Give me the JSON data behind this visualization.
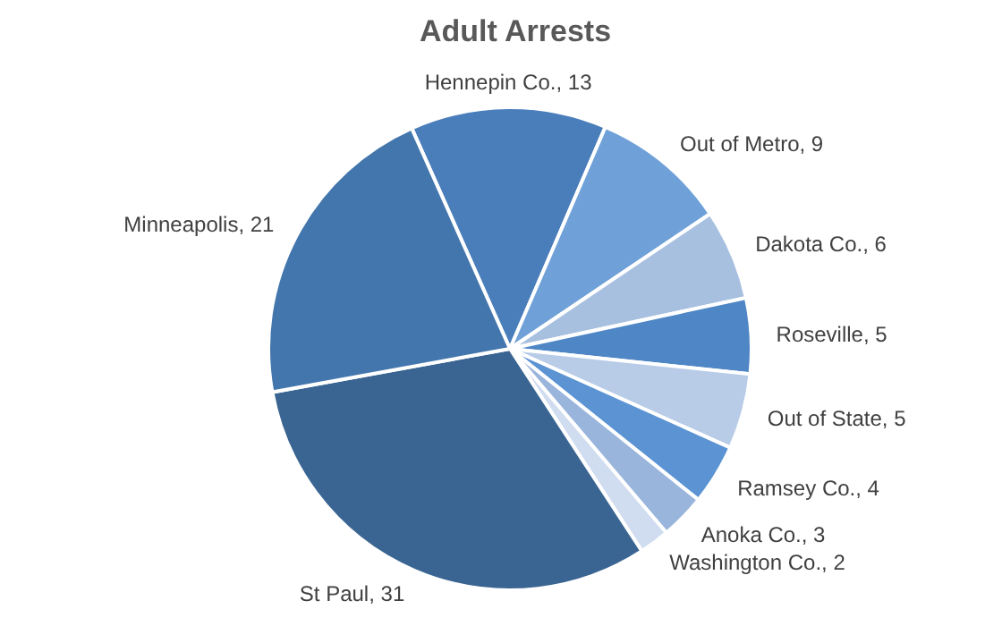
{
  "chart_data": {
    "type": "pie",
    "title": "Adult Arrests",
    "categories": [
      "Hennepin Co., 13",
      "Out of Metro, 9",
      "Dakota Co., 6",
      "Roseville, 5",
      "Out of State, 5",
      "Ramsey Co., 4",
      "Anoka Co., 3",
      "Washington Co., 2",
      "St Paul, 31",
      "Minneapolis, 21"
    ],
    "values": [
      13,
      9,
      6,
      5,
      5,
      4,
      3,
      2,
      31,
      21
    ],
    "colors": [
      "#4a7ebb",
      "#6fa1d8",
      "#a8c0e0",
      "#4f86c6",
      "#b8cce8",
      "#5b93d3",
      "#9ab5dc",
      "#d0dcef",
      "#3a6592",
      "#4276ad"
    ],
    "legend": false
  }
}
